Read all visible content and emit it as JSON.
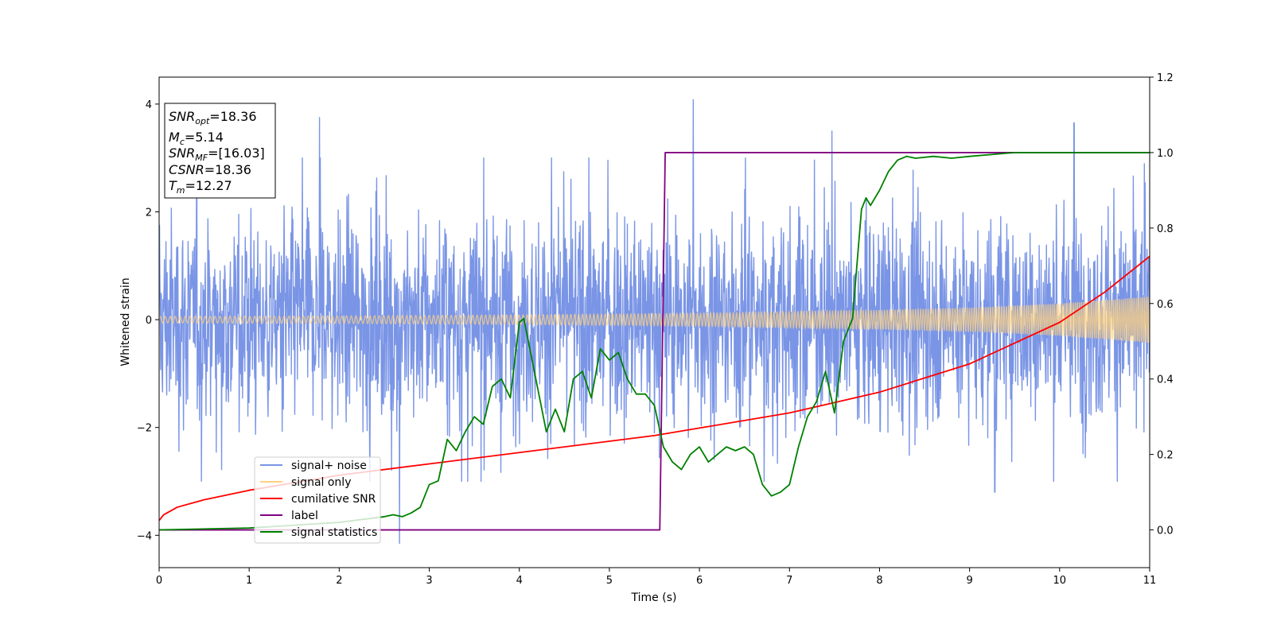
{
  "chart_data": {
    "type": "line",
    "xlabel": "Time (s)",
    "ylabel": "Whitened strain",
    "xlim": [
      0,
      11
    ],
    "ylim_left": [
      -4.6,
      4.5
    ],
    "ylim_right": [
      -0.1,
      1.2
    ],
    "x_ticks": [
      "0",
      "1",
      "2",
      "3",
      "4",
      "5",
      "6",
      "7",
      "8",
      "9",
      "10",
      "11"
    ],
    "y_ticks_left": [
      "4",
      "2",
      "0",
      "−2",
      "−4"
    ],
    "y_ticks_right": [
      "1.2",
      "1.0",
      "0.8",
      "0.6",
      "0.4",
      "0.2",
      "0.0"
    ],
    "legend": {
      "placement": "lower-left",
      "entries": [
        {
          "label": "signal+ noise",
          "color": "#7a95e6"
        },
        {
          "label": "signal only",
          "color": "#ffd280"
        },
        {
          "label": "cumilative SNR",
          "color": "#ff0000"
        },
        {
          "label": "label",
          "color": "#800080"
        },
        {
          "label": "signal statistics",
          "color": "#008000"
        }
      ]
    },
    "info_box": {
      "snr_opt": {
        "sym": "SNR",
        "sub": "opt",
        "value": "=18.36"
      },
      "mc": {
        "sym": "M",
        "sub": "c",
        "value": "=5.14"
      },
      "snr_mf": {
        "sym": "SNR",
        "sub": "MF",
        "value": "=[16.03]"
      },
      "csnr": {
        "sym": "CSNR",
        "sub": "",
        "value": "=18.36"
      },
      "tm": {
        "sym": "T",
        "sub": "m",
        "value": "=12.27"
      }
    },
    "series": [
      {
        "name": "signal+ noise",
        "axis": "left",
        "color": "#7a95e6",
        "typical_band": [
          -1.9,
          1.9
        ],
        "sparse_peaks": [
          {
            "x": 1.78,
            "y": 3.75
          },
          {
            "x": 5.93,
            "y": 4.08
          },
          {
            "x": 2.67,
            "y": -4.15
          },
          {
            "x": 7.47,
            "y": 3.5
          },
          {
            "x": 10.16,
            "y": 3.65
          },
          {
            "x": 9.28,
            "y": -3.2
          }
        ]
      },
      {
        "name": "signal only",
        "axis": "left",
        "color": "#ffd280",
        "envelope": [
          [
            0,
            0.06
          ],
          [
            2,
            0.07
          ],
          [
            4,
            0.09
          ],
          [
            6,
            0.12
          ],
          [
            8,
            0.18
          ],
          [
            9,
            0.22
          ],
          [
            10,
            0.3
          ],
          [
            11,
            0.43
          ]
        ]
      },
      {
        "name": "cumilative SNR",
        "axis": "right",
        "color": "#ff0000",
        "x": [
          0,
          0.05,
          0.2,
          0.5,
          1,
          1.5,
          2,
          3,
          4,
          5,
          5.5,
          6,
          7,
          8,
          9,
          10,
          10.5,
          11
        ],
        "y": [
          0.025,
          0.04,
          0.06,
          0.08,
          0.105,
          0.125,
          0.145,
          0.175,
          0.205,
          0.235,
          0.25,
          0.27,
          0.31,
          0.365,
          0.44,
          0.55,
          0.63,
          0.725
        ]
      },
      {
        "name": "label",
        "axis": "right",
        "color": "#800080",
        "x": [
          0,
          5.56,
          5.62,
          11
        ],
        "y": [
          0.0,
          0.0,
          1.0,
          1.0
        ]
      },
      {
        "name": "signal statistics",
        "axis": "right",
        "color": "#008000",
        "x": [
          0,
          1,
          2,
          2.5,
          2.6,
          2.7,
          2.8,
          2.9,
          3.0,
          3.1,
          3.2,
          3.3,
          3.4,
          3.5,
          3.6,
          3.7,
          3.8,
          3.9,
          4.0,
          4.05,
          4.1,
          4.2,
          4.3,
          4.4,
          4.5,
          4.6,
          4.7,
          4.8,
          4.9,
          5.0,
          5.1,
          5.2,
          5.3,
          5.4,
          5.5,
          5.6,
          5.7,
          5.8,
          5.9,
          6.0,
          6.1,
          6.2,
          6.3,
          6.4,
          6.5,
          6.6,
          6.7,
          6.8,
          6.9,
          7.0,
          7.1,
          7.2,
          7.3,
          7.4,
          7.5,
          7.6,
          7.7,
          7.8,
          7.85,
          7.9,
          8.0,
          8.1,
          8.2,
          8.3,
          8.4,
          8.6,
          8.8,
          9.0,
          9.5,
          10.0,
          10.5,
          11.0
        ],
        "y": [
          0.0,
          0.005,
          0.02,
          0.035,
          0.04,
          0.035,
          0.045,
          0.06,
          0.12,
          0.13,
          0.24,
          0.21,
          0.26,
          0.3,
          0.28,
          0.38,
          0.4,
          0.35,
          0.55,
          0.56,
          0.5,
          0.38,
          0.26,
          0.32,
          0.26,
          0.4,
          0.42,
          0.35,
          0.48,
          0.45,
          0.47,
          0.4,
          0.36,
          0.36,
          0.33,
          0.22,
          0.18,
          0.16,
          0.2,
          0.22,
          0.18,
          0.2,
          0.22,
          0.21,
          0.22,
          0.2,
          0.12,
          0.09,
          0.1,
          0.12,
          0.22,
          0.3,
          0.34,
          0.42,
          0.31,
          0.5,
          0.56,
          0.85,
          0.88,
          0.86,
          0.9,
          0.95,
          0.98,
          0.99,
          0.985,
          0.99,
          0.985,
          0.99,
          1.0,
          1.0,
          1.0,
          1.0
        ]
      }
    ]
  }
}
